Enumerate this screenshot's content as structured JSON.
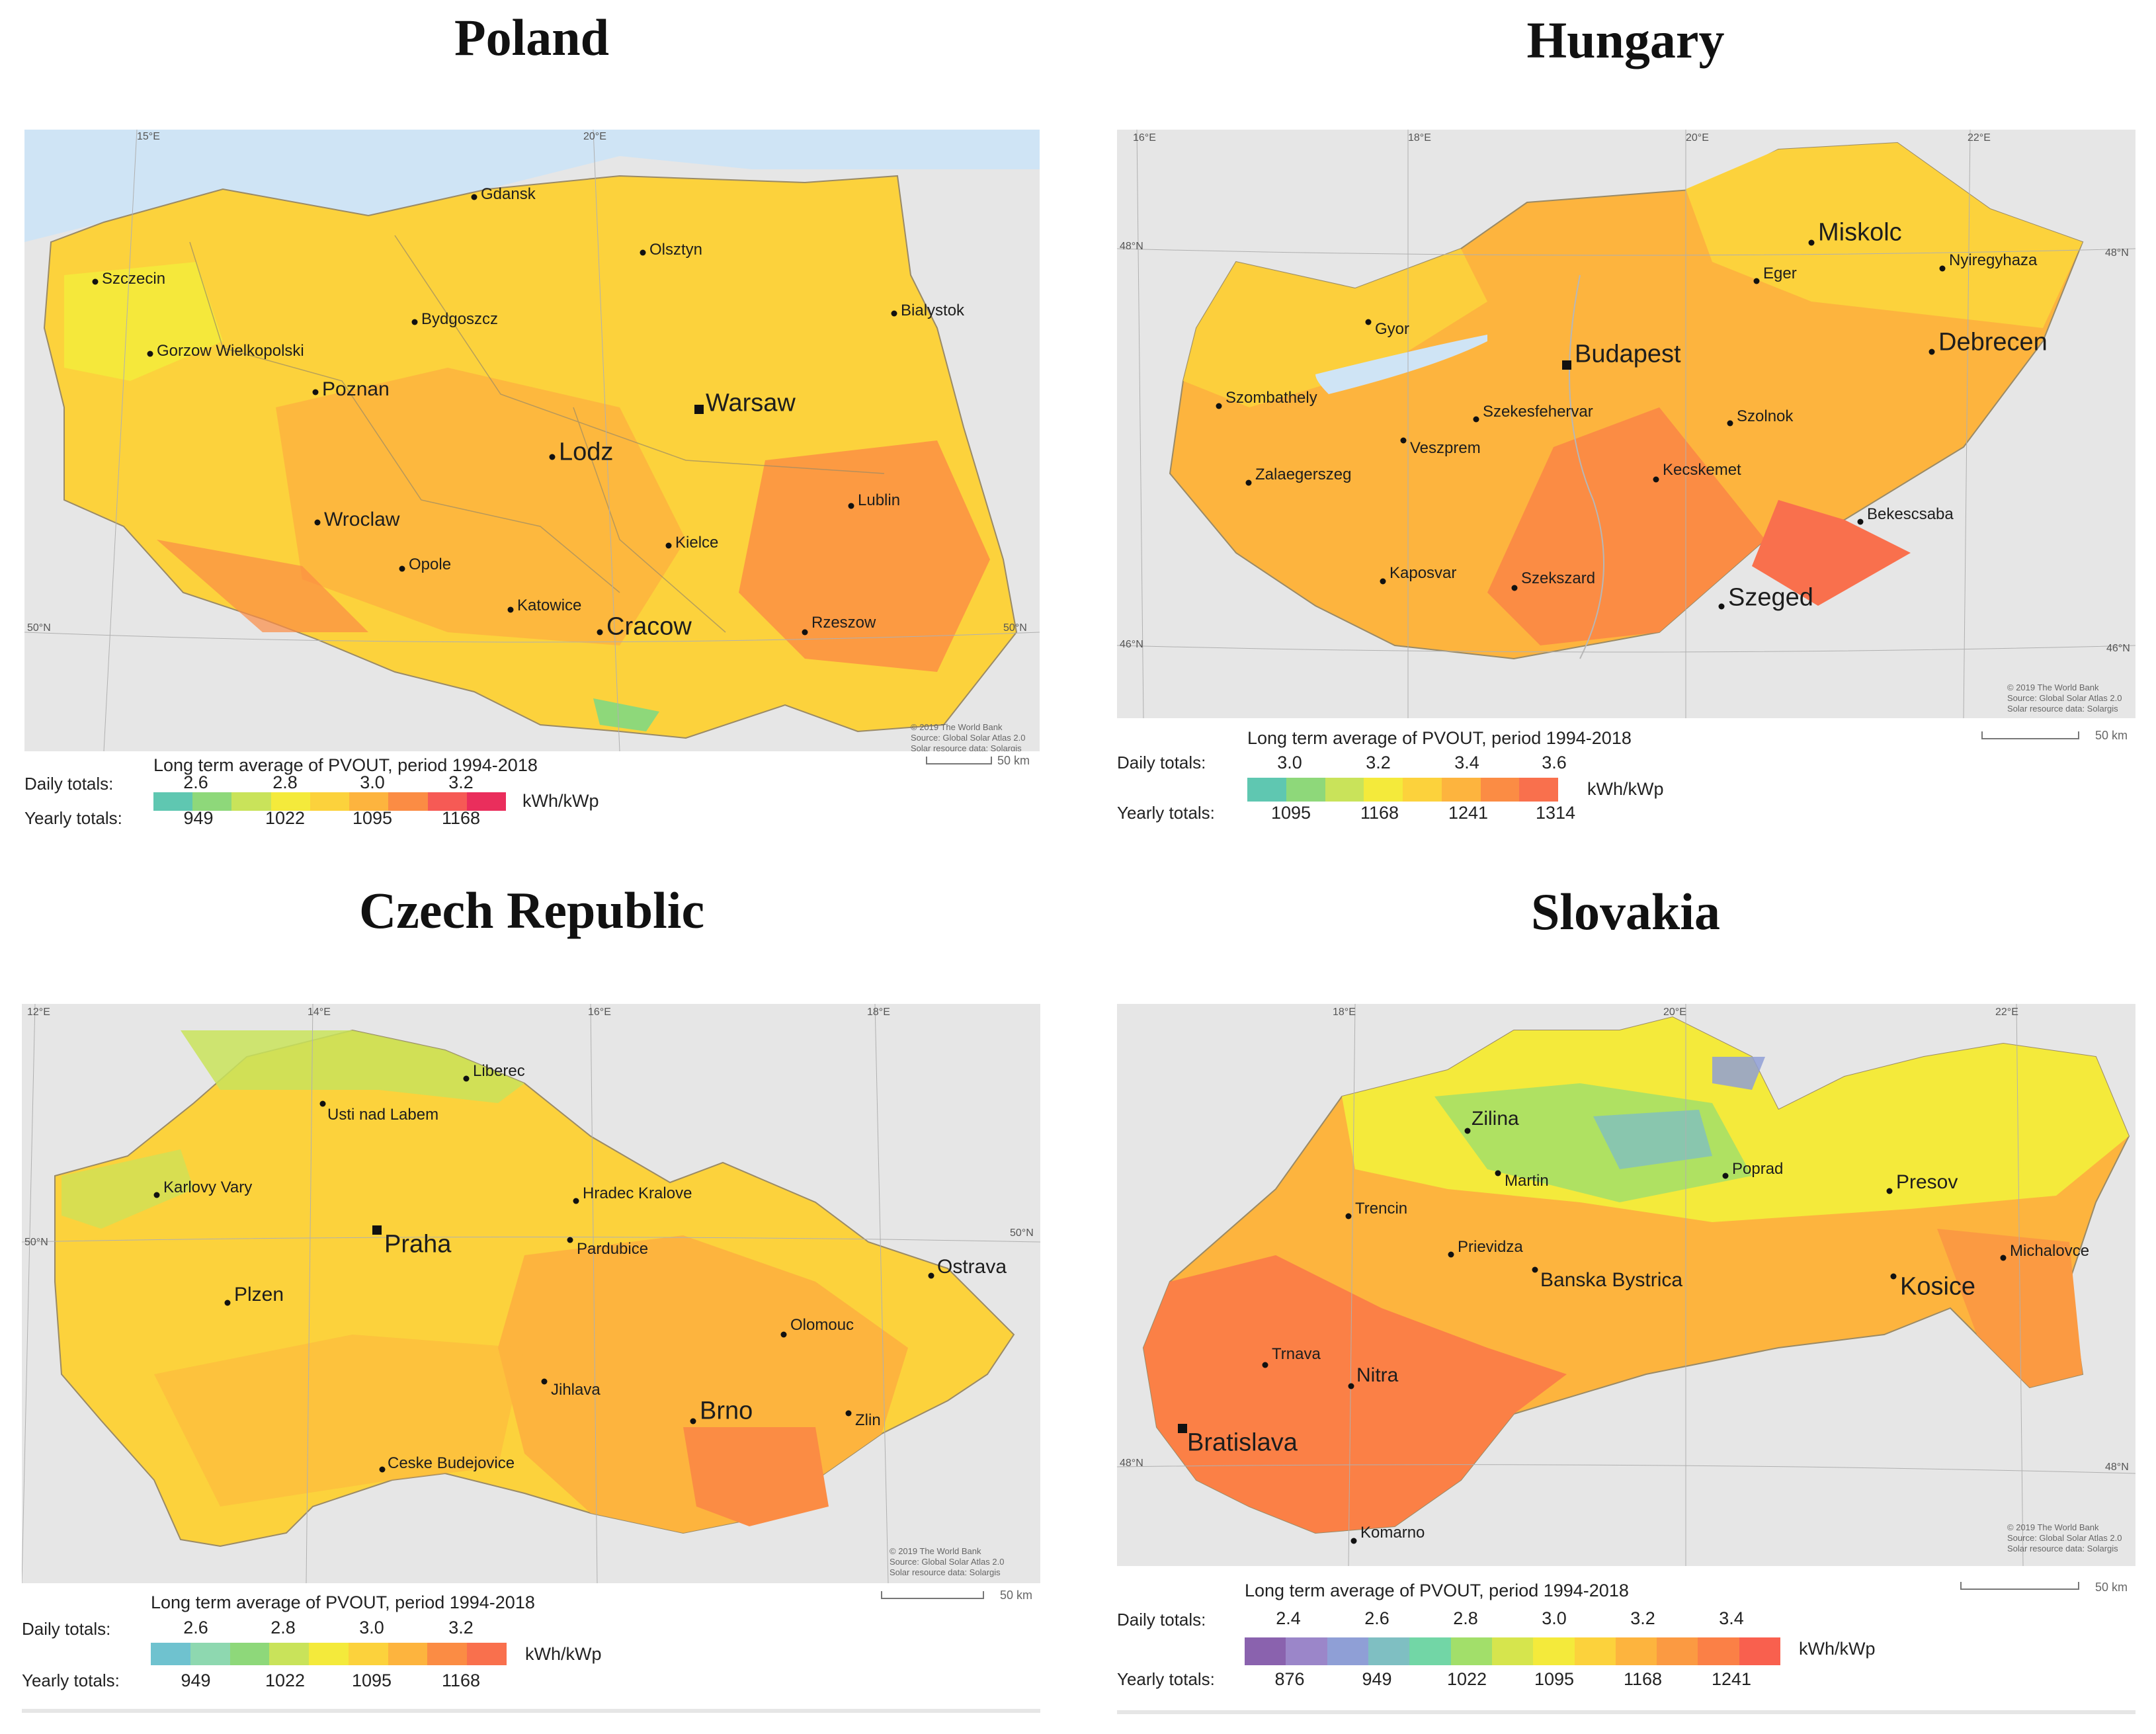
{
  "poland": {
    "title": "Poland",
    "legend_title": "Long term average of PVOUT, period 1994-2018",
    "daily_label": "Daily totals:",
    "yearly_label": "Yearly totals:",
    "daily": [
      "2.6",
      "2.8",
      "3.0",
      "3.2"
    ],
    "yearly": [
      "949",
      "1022",
      "1095",
      "1168"
    ],
    "unit": "kWh/kWp",
    "scale": "50 km",
    "credit": "© 2019 The World Bank\nSource: Global Solar Atlas 2.0\nSolar resource data: Solargis",
    "grid": [
      "15°E",
      "20°E",
      "50°N",
      "50°N"
    ],
    "colors": [
      "#5fc7b1",
      "#8ed87a",
      "#c9e35a",
      "#f4ea3b",
      "#fcd23c",
      "#fdb43e",
      "#fb8c44",
      "#f65a55",
      "#ea2e5c"
    ],
    "cities": [
      "Gdansk",
      "Szczecin",
      "Olsztyn",
      "Bialystok",
      "Bydgoszcz",
      "Gorzow Wielkopolski",
      "Poznan",
      "Warsaw",
      "Lodz",
      "Lublin",
      "Wroclaw",
      "Opole",
      "Kielce",
      "Katowice",
      "Cracow",
      "Rzeszow"
    ]
  },
  "hungary": {
    "title": "Hungary",
    "legend_title": "Long term average of PVOUT, period 1994-2018",
    "daily_label": "Daily totals:",
    "yearly_label": "Yearly totals:",
    "daily": [
      "3.0",
      "3.2",
      "3.4",
      "3.6"
    ],
    "yearly": [
      "1095",
      "1168",
      "1241",
      "1314"
    ],
    "unit": "kWh/kWp",
    "scale": "50 km",
    "credit": "© 2019 The World Bank\nSource: Global Solar Atlas 2.0\nSolar resource data: Solargis",
    "grid": [
      "16°E",
      "18°E",
      "20°E",
      "22°E",
      "48°N",
      "48°N",
      "46°N",
      "46°N"
    ],
    "colors": [
      "#5fc7b1",
      "#8ed87a",
      "#c9e35a",
      "#f4ea3b",
      "#fcd23c",
      "#fdb43e",
      "#fb8c44",
      "#f9704d"
    ],
    "cities": [
      "Miskolc",
      "Eger",
      "Nyiregyhaza",
      "Gyor",
      "Budapest",
      "Debrecen",
      "Szombathely",
      "Szekesfehervar",
      "Szolnok",
      "Veszprem",
      "Zalaegerszeg",
      "Kecskemet",
      "Bekescsaba",
      "Kaposvar",
      "Szekszard",
      "Szeged"
    ]
  },
  "czech": {
    "title": "Czech Republic",
    "legend_title": "Long term average of PVOUT, period 1994-2018",
    "daily_label": "Daily totals:",
    "yearly_label": "Yearly totals:",
    "daily": [
      "2.6",
      "2.8",
      "3.0",
      "3.2"
    ],
    "yearly": [
      "949",
      "1022",
      "1095",
      "1168"
    ],
    "unit": "kWh/kWp",
    "scale": "50 km",
    "credit": "© 2019 The World Bank\nSource: Global Solar Atlas 2.0\nSolar resource data: Solargis",
    "grid": [
      "12°E",
      "14°E",
      "16°E",
      "18°E",
      "50°N",
      "50°N"
    ],
    "colors": [
      "#6fc2cf",
      "#8ed8b0",
      "#8ed87a",
      "#c9e35a",
      "#f4ea3b",
      "#fcd23c",
      "#fdb43e",
      "#fb8c44",
      "#f9704d"
    ],
    "cities": [
      "Liberec",
      "Usti nad Labem",
      "Karlovy Vary",
      "Hradec Kralove",
      "Praha",
      "Pardubice",
      "Ostrava",
      "Plzen",
      "Olomouc",
      "Jihlava",
      "Brno",
      "Zlin",
      "Ceske Budejovice"
    ]
  },
  "slovakia": {
    "title": "Slovakia",
    "legend_title": "Long term average of PVOUT, period 1994-2018",
    "daily_label": "Daily totals:",
    "yearly_label": "Yearly totals:",
    "daily": [
      "2.4",
      "2.6",
      "2.8",
      "3.0",
      "3.2",
      "3.4"
    ],
    "yearly": [
      "876",
      "949",
      "1022",
      "1095",
      "1168",
      "1241"
    ],
    "unit": "kWh/kWp",
    "scale": "50 km",
    "credit": "© 2019 The World Bank\nSource: Global Solar Atlas 2.0\nSolar resource data: Solargis",
    "grid": [
      "18°E",
      "20°E",
      "22°E",
      "48°N",
      "48°N"
    ],
    "colors": [
      "#8a62ae",
      "#9b86c9",
      "#8f9fd6",
      "#7fbfc2",
      "#72d6a6",
      "#a2df6a",
      "#d6e54d",
      "#f4ea3b",
      "#fcd23c",
      "#fdb43e",
      "#fb9a42",
      "#fb8046",
      "#f9604e"
    ],
    "cities": [
      "Zilina",
      "Poprad",
      "Martin",
      "Presov",
      "Trencin",
      "Prievidza",
      "Banska Bystrica",
      "Michalovce",
      "Kosice",
      "Trnava",
      "Nitra",
      "Bratislava",
      "Komarno"
    ]
  }
}
